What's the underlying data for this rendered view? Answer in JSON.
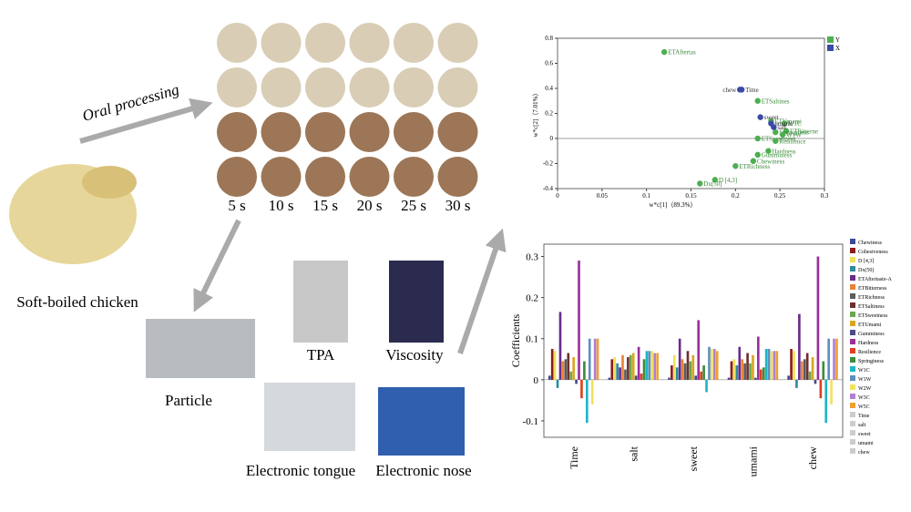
{
  "labels": {
    "oral_processing": "Oral processing",
    "times": [
      "5 s",
      "10 s",
      "15 s",
      "20 s",
      "25 s",
      "30 s"
    ],
    "sample": "Soft-boiled chicken",
    "particle": "Particle",
    "tpa": "TPA",
    "viscosity": "Viscosity",
    "tongue": "Electronic tongue",
    "nose": "Electronic nose"
  },
  "chart_data": [
    {
      "type": "scatter",
      "xlabel": "w*c[1]（89.3%）",
      "ylabel": "w*c[2]（7.01%）",
      "xlim": [
        0,
        0.3
      ],
      "ylim": [
        -0.4,
        0.8
      ],
      "xticks": [
        0,
        0.05,
        0.1,
        0.15,
        0.2,
        0.25,
        0.3
      ],
      "yticks": [
        -0.4,
        -0.2,
        0,
        0.2,
        0.4,
        0.6,
        0.8
      ],
      "series": [
        {
          "name": "Y",
          "color": "#4caf50",
          "x": [
            0.12,
            0.225,
            0.24,
            0.255,
            0.257,
            0.245,
            0.253,
            0.225,
            0.245,
            0.237,
            0.225,
            0.22,
            0.2,
            0.177,
            0.16
          ],
          "values": [
            0.69,
            0.3,
            0.14,
            0.12,
            0.06,
            0.05,
            0.03,
            0.0,
            -0.02,
            -0.1,
            -0.13,
            -0.18,
            -0.22,
            -0.33,
            -0.36
          ],
          "point_labels": [
            "ETAftertas",
            "ETSaltines",
            "ETUmami",
            "W1C",
            "ETBitterne",
            "Springiness",
            "W1W",
            "ETSweetness",
            "Resilience",
            "Hardness",
            "Gumminess",
            "Chewiness",
            "ETRichness",
            "D [4,3]",
            "Dx(50)"
          ]
        },
        {
          "name": "X",
          "color": "#3a4aa8",
          "x": [
            0.205,
            0.207,
            0.228,
            0.24,
            0.243
          ],
          "values": [
            0.39,
            0.39,
            0.17,
            0.12,
            0.09
          ],
          "point_labels": [
            "chew",
            "Time",
            "sweet",
            "umami",
            "salt"
          ]
        }
      ]
    },
    {
      "type": "bar",
      "ylabel": "Coefficients",
      "categories": [
        "Time",
        "salt",
        "sweet",
        "umami",
        "chew"
      ],
      "ylim": [
        -0.14,
        0.33
      ],
      "yticks": [
        -0.1,
        0,
        0.1,
        0.2,
        0.3
      ],
      "series": [
        {
          "name": "Chewiness",
          "color": "#3d4a9c",
          "values": [
            0.01,
            0.005,
            0.005,
            0.005,
            0.01
          ]
        },
        {
          "name": "Cohesiveness",
          "color": "#8b1c1c",
          "values": [
            0.075,
            0.05,
            0.035,
            0.045,
            0.075
          ]
        },
        {
          "name": "D [4,3]",
          "color": "#f0e05a",
          "values": [
            0.07,
            0.055,
            0.06,
            0.05,
            0.07
          ]
        },
        {
          "name": "Dx(50)",
          "color": "#2f8a9e",
          "values": [
            -0.02,
            0.04,
            0.03,
            0.035,
            -0.02
          ]
        },
        {
          "name": "ETAftertaste-A",
          "color": "#6a2c8a",
          "values": [
            0.165,
            0.03,
            0.1,
            0.08,
            0.16
          ]
        },
        {
          "name": "ETBitterness",
          "color": "#e8833a",
          "values": [
            0.045,
            0.06,
            0.05,
            0.05,
            0.045
          ]
        },
        {
          "name": "ETRichness",
          "color": "#5b5b5b",
          "values": [
            0.05,
            0.025,
            0.04,
            0.04,
            0.05
          ]
        },
        {
          "name": "ETSaltiness",
          "color": "#6e2f2f",
          "values": [
            0.065,
            0.055,
            0.07,
            0.065,
            0.065
          ]
        },
        {
          "name": "ETSweetness",
          "color": "#6aa84f",
          "values": [
            0.02,
            0.06,
            0.045,
            0.04,
            0.02
          ]
        },
        {
          "name": "ETUmami",
          "color": "#d9a520",
          "values": [
            0.055,
            0.065,
            0.06,
            0.06,
            0.055
          ]
        },
        {
          "name": "Gumminess",
          "color": "#4a4a8a",
          "values": [
            -0.01,
            0.01,
            0.01,
            0.005,
            -0.01
          ]
        },
        {
          "name": "Hardness",
          "color": "#9b2f9b",
          "values": [
            0.29,
            0.08,
            0.145,
            0.105,
            0.3
          ]
        },
        {
          "name": "Resilience",
          "color": "#e04020",
          "values": [
            -0.045,
            0.015,
            0.02,
            0.025,
            -0.045
          ]
        },
        {
          "name": "Springiness",
          "color": "#3c8c3c",
          "values": [
            0.045,
            0.05,
            0.035,
            0.03,
            0.045
          ]
        },
        {
          "name": "W1C",
          "color": "#1fb5c5",
          "values": [
            -0.105,
            0.07,
            -0.03,
            0.075,
            -0.105
          ]
        },
        {
          "name": "W1W",
          "color": "#5f8fbf",
          "values": [
            0.1,
            0.07,
            0.08,
            0.075,
            0.1
          ]
        },
        {
          "name": "W2W",
          "color": "#f3e05f",
          "values": [
            -0.06,
            0.07,
            0.075,
            0.07,
            -0.06
          ]
        },
        {
          "name": "W3C",
          "color": "#b080d0",
          "values": [
            0.1,
            0.065,
            0.075,
            0.07,
            0.1
          ]
        },
        {
          "name": "W5C",
          "color": "#f0a030",
          "values": [
            0.1,
            0.065,
            0.07,
            0.07,
            0.1
          ]
        },
        {
          "name": "Time",
          "color": "#cccccc",
          "values": [
            null,
            null,
            null,
            null,
            null
          ]
        },
        {
          "name": "salt",
          "color": "#cccccc",
          "values": [
            null,
            null,
            null,
            null,
            null
          ]
        },
        {
          "name": "sweet",
          "color": "#cccccc",
          "values": [
            null,
            null,
            null,
            null,
            null
          ]
        },
        {
          "name": "umami",
          "color": "#cccccc",
          "values": [
            null,
            null,
            null,
            null,
            null
          ]
        },
        {
          "name": "chew",
          "color": "#cccccc",
          "values": [
            null,
            null,
            null,
            null,
            null
          ]
        }
      ]
    }
  ]
}
